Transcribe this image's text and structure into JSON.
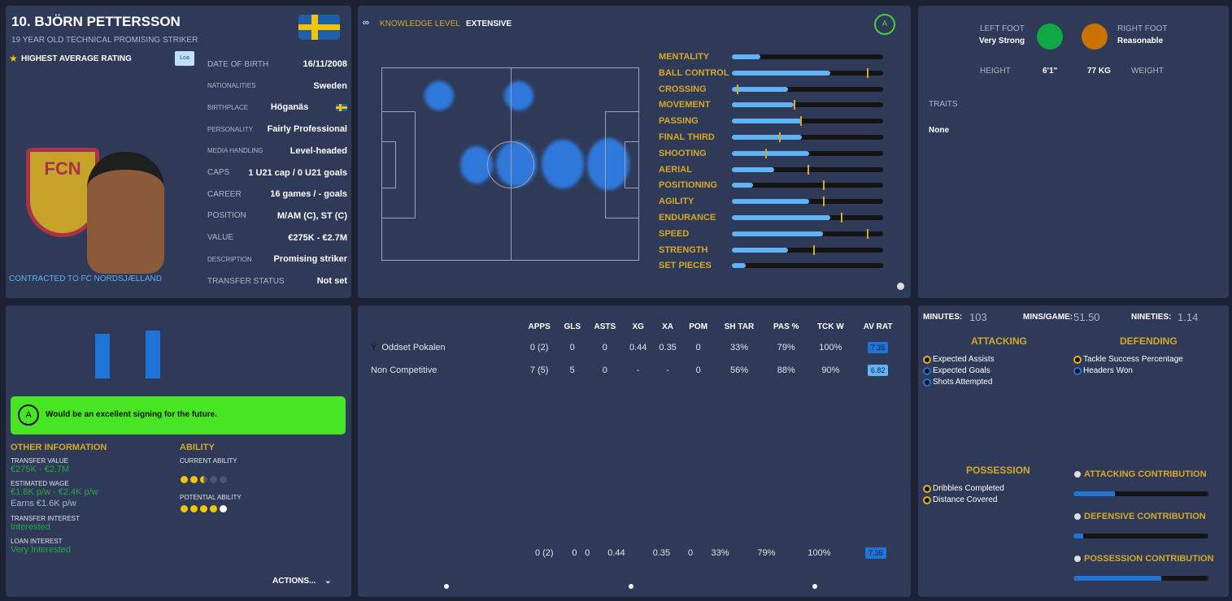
{
  "player": {
    "name": "10. BJÖRN PETTERSSON",
    "subtitle": "19 YEAR OLD TECHNICAL PROMISING STRIKER",
    "highlight": "HIGHEST AVERAGE RATING",
    "loan_badge": "Loa",
    "contracted": "CONTRACTED TO FC NORDSJÆLLAND",
    "club_logo_text": "FCN"
  },
  "details": [
    {
      "label": "DATE OF BIRTH",
      "value": "16/11/2008"
    },
    {
      "label": "NATIONALITIES",
      "value": "Sweden"
    },
    {
      "label": "BIRTHPLACE",
      "value": "Höganäs"
    },
    {
      "label": "PERSONALITY",
      "value": "Fairly Professional"
    },
    {
      "label": "MEDIA HANDLING",
      "value": "Level-headed"
    },
    {
      "label": "CAPS",
      "value": "1 U21 cap / 0 U21 goals"
    },
    {
      "label": "CAREER",
      "value": "16 games /    -  goals"
    },
    {
      "label": "POSITION",
      "value": "M/AM (C), ST (C)"
    },
    {
      "label": "VALUE",
      "value": "€275K - €2.7M"
    },
    {
      "label": "DESCRIPTION",
      "value": "Promising striker"
    },
    {
      "label": "TRANSFER STATUS",
      "value": "Not set"
    }
  ],
  "knowledge": {
    "label": "KNOWLEDGE LEVEL",
    "value": "EXTENSIVE",
    "grade": "A"
  },
  "attributes": [
    {
      "name": "MENTALITY",
      "fill": 0.19,
      "mark": null
    },
    {
      "name": "BALL CONTROL",
      "fill": 0.65,
      "mark": 0.89
    },
    {
      "name": "CROSSING",
      "fill": 0.37,
      "mark": 0.03
    },
    {
      "name": "MOVEMENT",
      "fill": 0.41,
      "mark": 0.41
    },
    {
      "name": "PASSING",
      "fill": 0.46,
      "mark": 0.45
    },
    {
      "name": "FINAL THIRD",
      "fill": 0.46,
      "mark": 0.31
    },
    {
      "name": "SHOOTING",
      "fill": 0.51,
      "mark": 0.22
    },
    {
      "name": "AERIAL",
      "fill": 0.28,
      "mark": 0.5
    },
    {
      "name": "POSITIONING",
      "fill": 0.14,
      "mark": 0.6
    },
    {
      "name": "AGILITY",
      "fill": 0.51,
      "mark": 0.6
    },
    {
      "name": "ENDURANCE",
      "fill": 0.65,
      "mark": 0.72
    },
    {
      "name": "SPEED",
      "fill": 0.6,
      "mark": 0.89
    },
    {
      "name": "STRENGTH",
      "fill": 0.37,
      "mark": 0.54
    },
    {
      "name": "SET PIECES",
      "fill": 0.09,
      "mark": null
    }
  ],
  "physical": {
    "left_foot_label": "LEFT FOOT",
    "left_foot": "Very Strong",
    "right_foot_label": "RIGHT FOOT",
    "right_foot": "Reasonable",
    "height_label": "HEIGHT",
    "height": "6'1\"",
    "weight": "77 KG",
    "weight_label": "WEIGHT",
    "traits_label": "TRAITS",
    "traits": "None",
    "left_color": "#0fa844",
    "right_color": "#c97200"
  },
  "scout": {
    "grade": "A",
    "text": "Would be an excellent signing for the future."
  },
  "other": {
    "title": "OTHER INFORMATION",
    "tv_label": "TRANSFER VALUE",
    "tv": "€275K - €2.7M",
    "wage_label": "ESTIMATED WAGE",
    "wage": "€1.8K p/w - €2.4K p/w",
    "earns": "Earns €1.6K p/w",
    "ti_label": "TRANSFER INTEREST",
    "ti": "Interested",
    "li_label": "LOAN INTEREST",
    "li": "Very Interested"
  },
  "ability": {
    "title": "ABILITY",
    "ca_label": "CURRENT ABILITY",
    "ca_stars": 2.5,
    "pa_label": "POTENTIAL ABILITY",
    "pa_stars": 5
  },
  "actions": "ACTIONS...",
  "stats": {
    "headers": [
      "",
      "APPS",
      "GLS",
      "ASTS",
      "XG",
      "XA",
      "POM",
      "SH TAR",
      "PAS %",
      "TCK W",
      "AV RAT"
    ],
    "rows": [
      [
        "Oddset Pokalen",
        "0 (2)",
        "0",
        "0",
        "0.44",
        "0.35",
        "0",
        "33%",
        "79%",
        "100%",
        "7.35"
      ],
      [
        "Non Competitive",
        "7 (5)",
        "5",
        "0",
        "-",
        "-",
        "0",
        "56%",
        "88%",
        "90%",
        "6.82"
      ]
    ],
    "totals": [
      "",
      "0 (2)",
      "0",
      "0",
      "0.44",
      "0.35",
      "0",
      "33%",
      "79%",
      "100%",
      "7.35"
    ]
  },
  "summary": {
    "minutes_label": "MINUTES:",
    "minutes": "103",
    "mpg_label": "MINS/GAME:",
    "mpg": "51.50",
    "nineties_label": "NINETIES:",
    "nineties": "1.14"
  },
  "attacking": {
    "title": "ATTACKING",
    "items": [
      "Expected Assists",
      "Expected Goals",
      "Shots Attempted"
    ]
  },
  "defending": {
    "title": "DEFENDING",
    "items": [
      "Tackle Success Percentage",
      "Headers Won"
    ]
  },
  "possession": {
    "title": "POSSESSION",
    "items": [
      "Dribbles Completed",
      "Distance Covered"
    ]
  },
  "contrib": [
    {
      "label": "ATTACKING CONTRIBUTION",
      "value": 0.31
    },
    {
      "label": "DEFENSIVE CONTRIBUTION",
      "value": 0.07
    },
    {
      "label": "POSSESSION CONTRIBUTION",
      "value": 0.65
    }
  ]
}
